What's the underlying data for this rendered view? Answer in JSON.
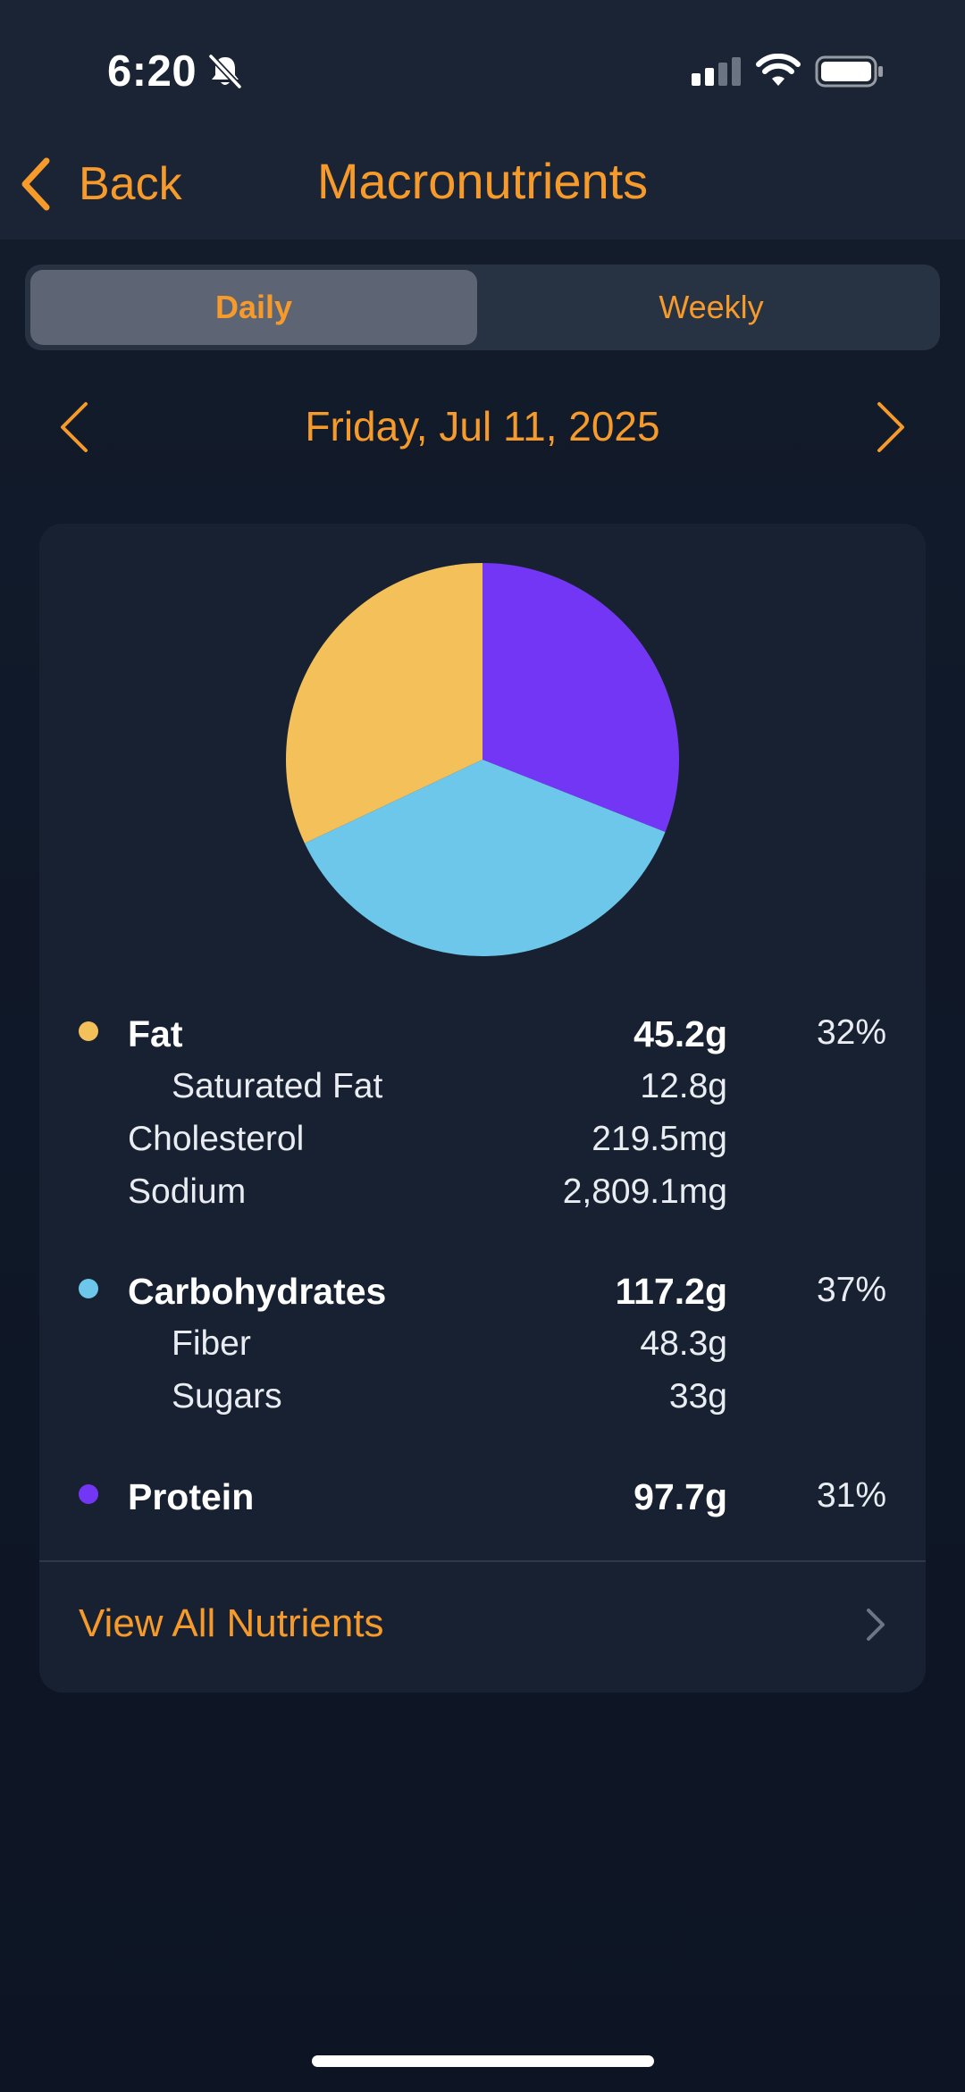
{
  "status_bar": {
    "time": "6:20",
    "icons": [
      "bell-slash-icon",
      "cellular-signal-icon",
      "wifi-icon",
      "battery-icon"
    ]
  },
  "nav": {
    "back_label": "Back",
    "title": "Macronutrients"
  },
  "segments": {
    "items": [
      {
        "label": "Daily",
        "selected": true
      },
      {
        "label": "Weekly",
        "selected": false
      }
    ]
  },
  "date_nav": {
    "date": "Friday, Jul 11, 2025"
  },
  "chart_data": {
    "type": "pie",
    "slices": [
      {
        "name": "Protein",
        "value": 31,
        "color": "#7436f5"
      },
      {
        "name": "Carbohydrates",
        "value": 37,
        "color": "#6cc7ea"
      },
      {
        "name": "Fat",
        "value": 32,
        "color": "#f4c05a"
      }
    ]
  },
  "nutrients": {
    "fat": {
      "label": "Fat",
      "value": "45.2g",
      "percent": "32%",
      "color": "#f4c05a"
    },
    "saturated_fat": {
      "label": "Saturated Fat",
      "value": "12.8g"
    },
    "cholesterol": {
      "label": "Cholesterol",
      "value": "219.5mg"
    },
    "sodium": {
      "label": "Sodium",
      "value": "2,809.1mg"
    },
    "carbohydrates": {
      "label": "Carbohydrates",
      "value": "117.2g",
      "percent": "37%",
      "color": "#6cc7ea"
    },
    "fiber": {
      "label": "Fiber",
      "value": "48.3g"
    },
    "sugars": {
      "label": "Sugars",
      "value": "33g"
    },
    "protein": {
      "label": "Protein",
      "value": "97.7g",
      "percent": "31%",
      "color": "#7436f5"
    }
  },
  "footer": {
    "view_all_label": "View All Nutrients"
  },
  "theme": {
    "accent": "#f59a2b",
    "background": "#0d1524",
    "card": "#172131"
  }
}
